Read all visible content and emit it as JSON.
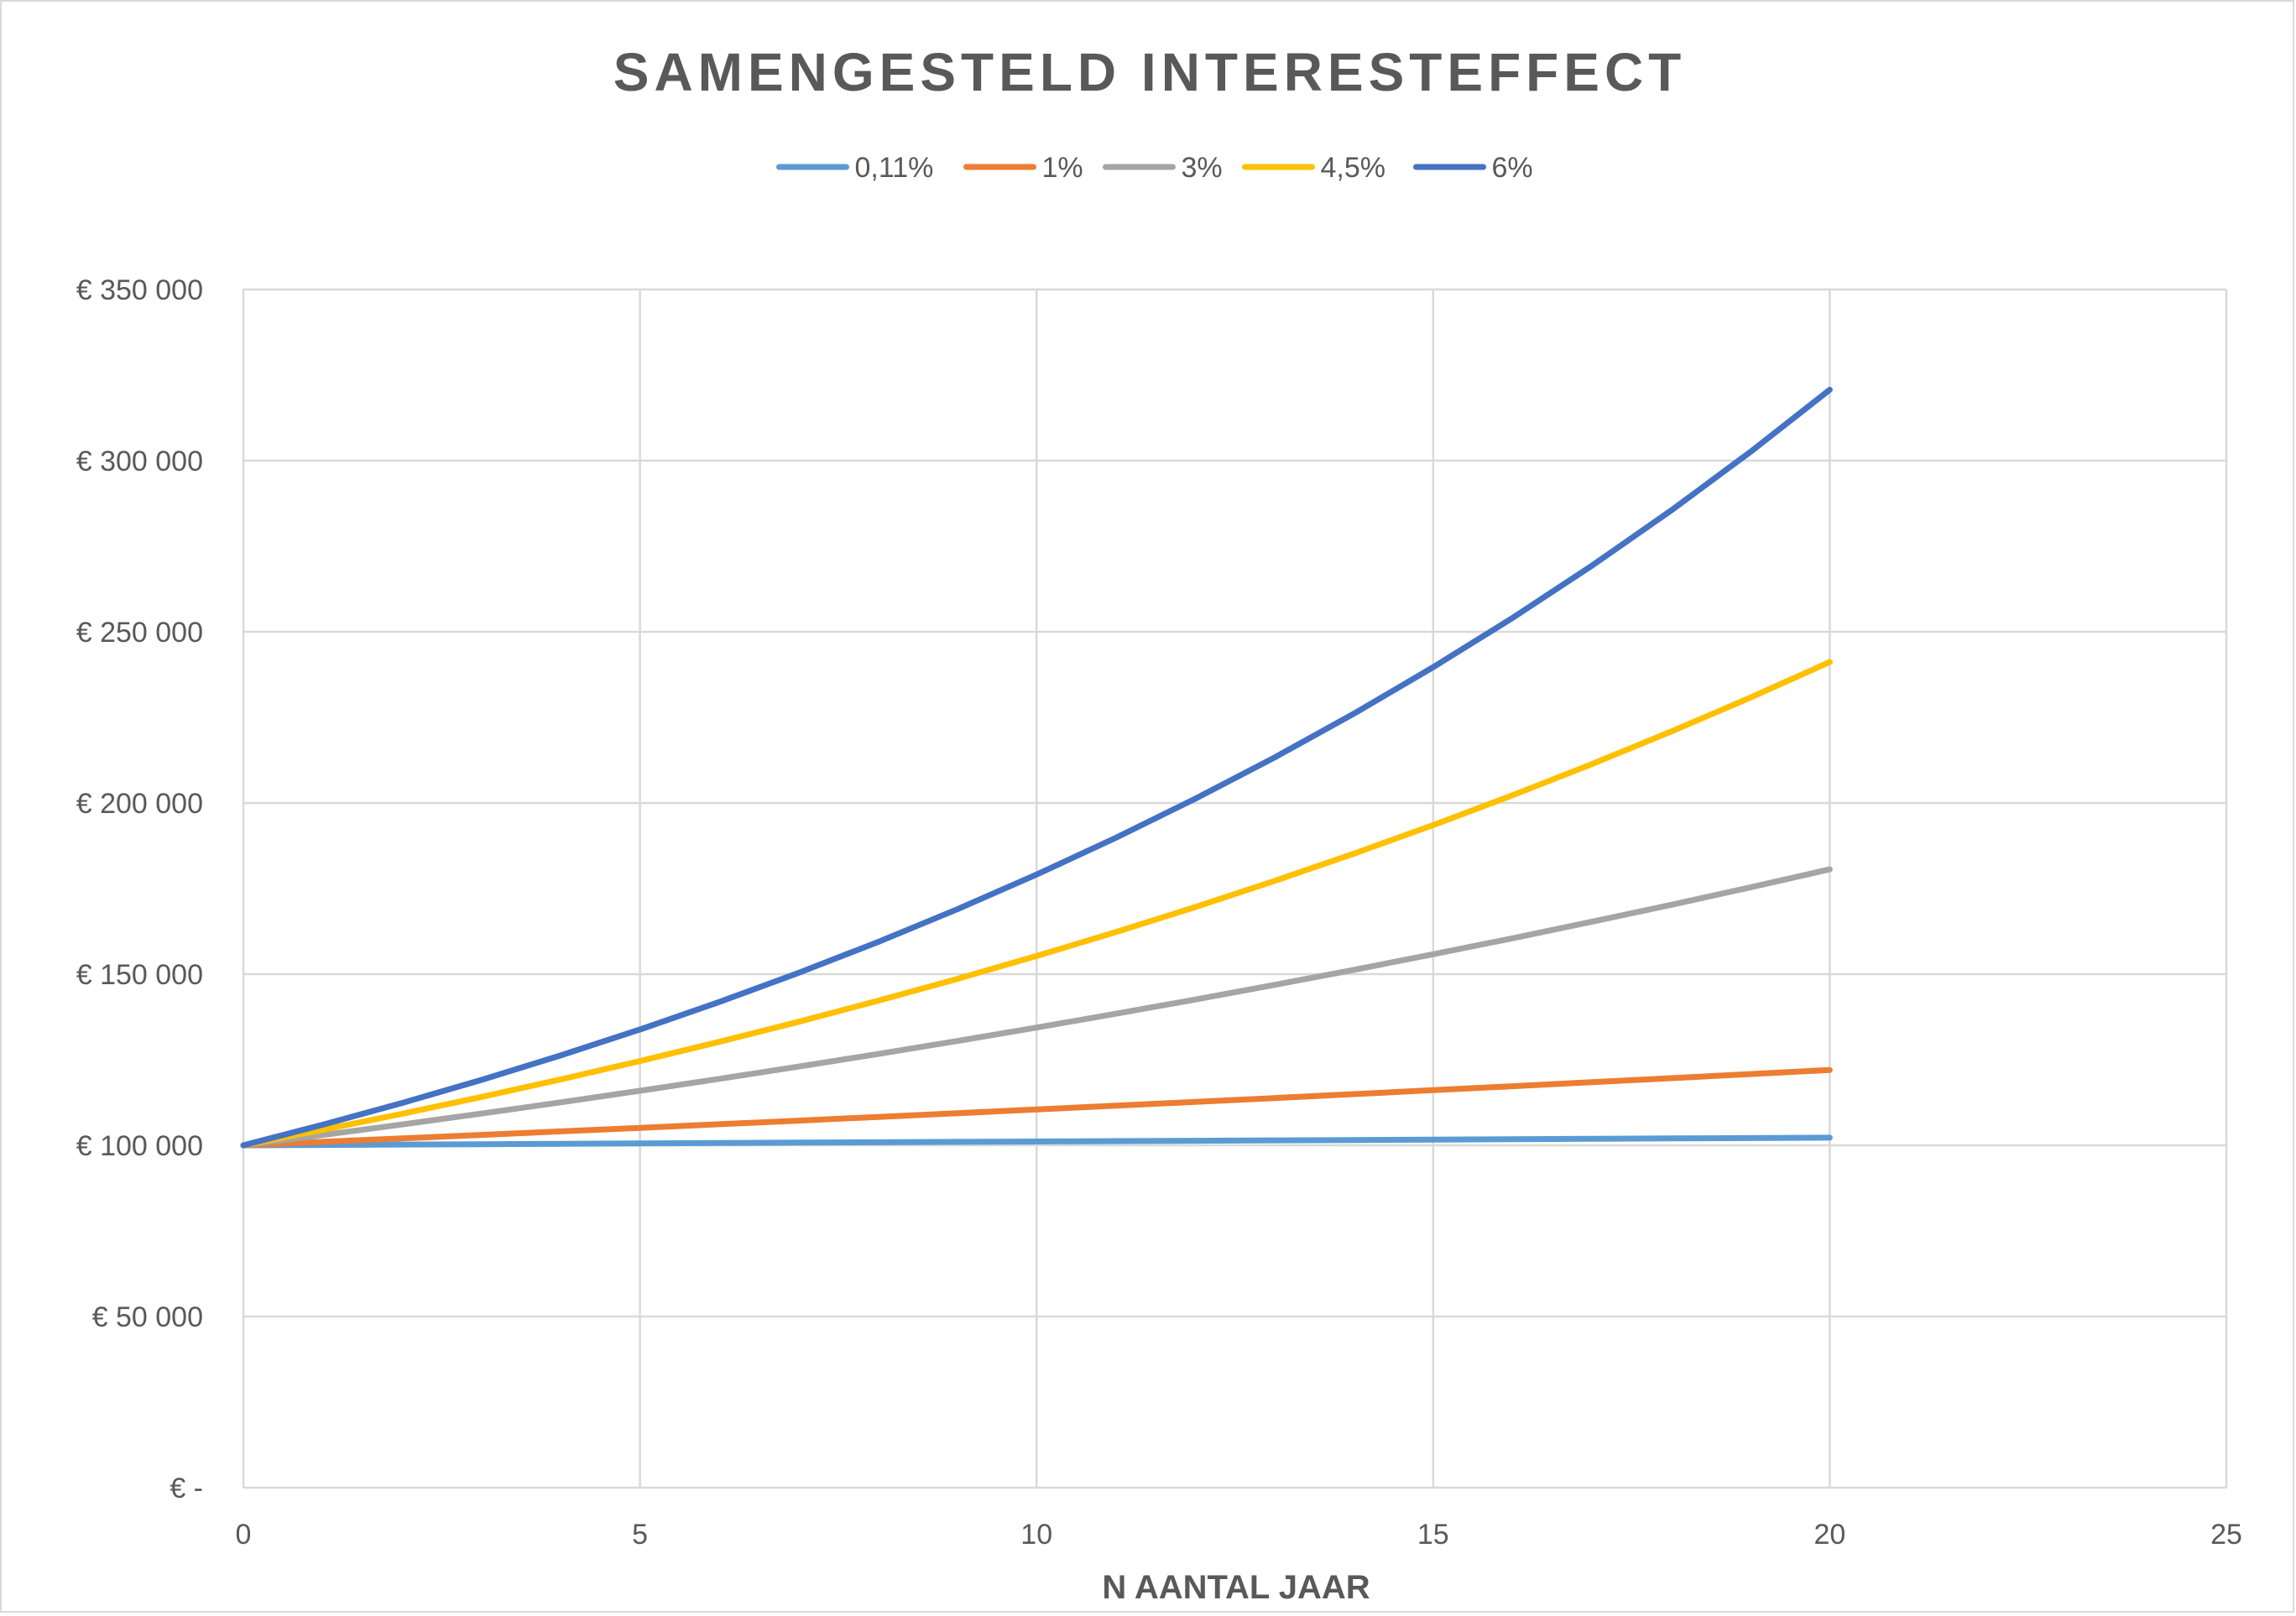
{
  "chart_data": {
    "type": "line",
    "title": "SAMENGESTELD INTERESTEFFECT",
    "xlabel": "N AANTAL JAAR",
    "ylabel": "",
    "xlim": [
      0,
      25
    ],
    "ylim": [
      0,
      350000
    ],
    "x_ticks": [
      0,
      5,
      10,
      15,
      20,
      25
    ],
    "y_ticks": [
      0,
      50000,
      100000,
      150000,
      200000,
      250000,
      300000,
      350000
    ],
    "y_tick_labels": [
      "€ -",
      "€ 50 000",
      "€ 100 000",
      "€ 150 000",
      "€ 200 000",
      "€ 250 000",
      "€ 300 000",
      "€ 350 000"
    ],
    "x_tick_labels": [
      "0",
      "5",
      "10",
      "15",
      "20",
      "25"
    ],
    "grid": true,
    "legend_position": "top",
    "x": [
      0,
      1,
      2,
      3,
      4,
      5,
      6,
      7,
      8,
      9,
      10,
      11,
      12,
      13,
      14,
      15,
      16,
      17,
      18,
      19,
      20
    ],
    "series": [
      {
        "name": "0,11%",
        "color": "#5b9bd5",
        "values": [
          100000,
          100110,
          100220,
          100330,
          100441,
          100551,
          100662,
          100773,
          100884,
          100995,
          101106,
          101217,
          101328,
          101440,
          101551,
          101663,
          101775,
          101887,
          101999,
          102111,
          102224
        ]
      },
      {
        "name": "1%",
        "color": "#ed7d31",
        "values": [
          100000,
          101000,
          102010,
          103030,
          104060,
          105101,
          106152,
          107214,
          108286,
          109369,
          110462,
          111567,
          112683,
          113809,
          114947,
          116097,
          117258,
          118430,
          119615,
          120811,
          122019
        ]
      },
      {
        "name": "3%",
        "color": "#a5a5a5",
        "values": [
          100000,
          103000,
          106090,
          109273,
          112551,
          115927,
          119405,
          122987,
          126677,
          130477,
          134392,
          138423,
          142576,
          146853,
          151259,
          155797,
          160471,
          165285,
          170243,
          175351,
          180611
        ]
      },
      {
        "name": "4,5%",
        "color": "#ffc000",
        "values": [
          100000,
          104500,
          109203,
          114117,
          119252,
          124618,
          130226,
          136086,
          142210,
          148610,
          155297,
          162285,
          169588,
          177220,
          185194,
          193528,
          202237,
          211338,
          220848,
          230786,
          241171
        ]
      },
      {
        "name": "6%",
        "color": "#4472c4",
        "values": [
          100000,
          106000,
          112360,
          119102,
          126248,
          133823,
          141852,
          150363,
          159385,
          168948,
          179085,
          189830,
          201220,
          213293,
          226090,
          239656,
          254035,
          269277,
          285434,
          302560,
          320714
        ]
      }
    ]
  }
}
